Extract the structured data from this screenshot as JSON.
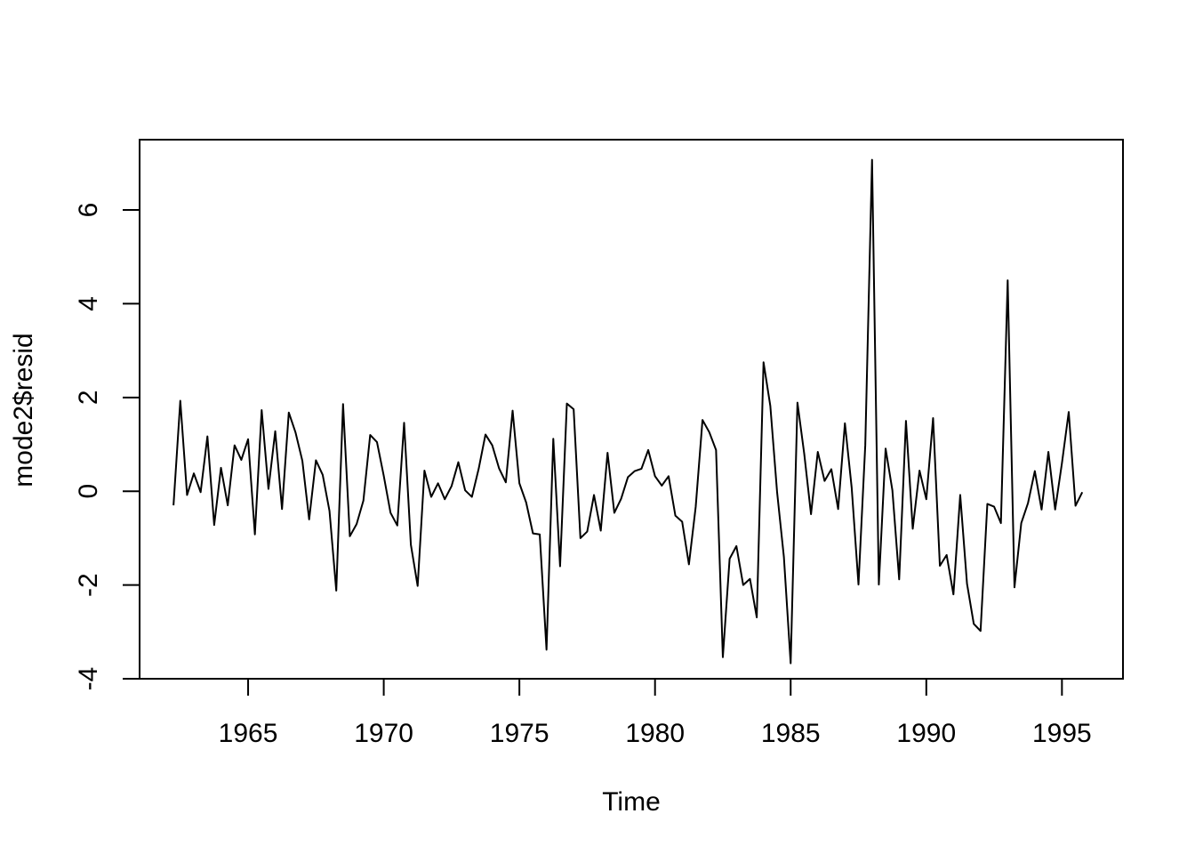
{
  "chart_data": {
    "type": "line",
    "title": "",
    "xlabel": "Time",
    "ylabel": "mode2$resid",
    "xlim": [
      1961.0,
      1997.25
    ],
    "ylim": [
      -4.0,
      7.5
    ],
    "x_ticks": [
      1965,
      1970,
      1975,
      1980,
      1985,
      1990,
      1995
    ],
    "y_ticks": [
      -4,
      -2,
      0,
      2,
      4,
      6
    ],
    "x_tick_labels": [
      "1965",
      "1970",
      "1975",
      "1980",
      "1985",
      "1990",
      "1995"
    ],
    "y_tick_labels": [
      "-4",
      "-2",
      "0",
      "2",
      "4",
      "6"
    ],
    "x_start": 1962.25,
    "frequency": 4,
    "grid": false,
    "line_color": "#000000",
    "series": [
      {
        "values": [
          -0.3,
          1.93,
          -0.08,
          0.38,
          -0.02,
          1.17,
          -0.72,
          0.5,
          -0.3,
          0.98,
          0.67,
          1.11,
          -0.92,
          1.73,
          0.05,
          1.28,
          -0.38,
          1.68,
          1.25,
          0.65,
          -0.6,
          0.66,
          0.35,
          -0.42,
          -2.12,
          1.86,
          -0.96,
          -0.7,
          -0.2,
          1.2,
          1.05,
          0.33,
          -0.46,
          -0.73,
          1.46,
          -1.14,
          -2.02,
          0.44,
          -0.12,
          0.17,
          -0.17,
          0.11,
          0.62,
          0.02,
          -0.12,
          0.48,
          1.21,
          0.98,
          0.49,
          0.19,
          1.72,
          0.17,
          -0.24,
          -0.9,
          -0.92,
          -3.38,
          1.12,
          -1.6,
          1.87,
          1.75,
          -1.0,
          -0.86,
          -0.08,
          -0.84,
          0.82,
          -0.46,
          -0.16,
          0.3,
          0.43,
          0.48,
          0.88,
          0.32,
          0.12,
          0.32,
          -0.52,
          -0.65,
          -1.56,
          -0.33,
          1.52,
          1.26,
          0.88,
          -3.54,
          -1.44,
          -1.17,
          -2.0,
          -1.87,
          -2.69,
          2.75,
          1.82,
          -0.02,
          -1.4,
          -3.67,
          1.89,
          0.8,
          -0.49,
          0.84,
          0.22,
          0.47,
          -0.38,
          1.45,
          0.07,
          -1.99,
          0.98,
          7.07,
          -1.99,
          0.91,
          0.02,
          -1.88,
          1.5,
          -0.8,
          0.44,
          -0.17,
          1.56,
          -1.59,
          -1.36,
          -2.2,
          -0.08,
          -1.97,
          -2.83,
          -2.98,
          -0.27,
          -0.33,
          -0.68,
          4.5,
          -2.05,
          -0.68,
          -0.25,
          0.43,
          -0.39,
          0.84,
          -0.39,
          0.6,
          1.69,
          -0.31,
          -0.02
        ]
      }
    ]
  }
}
